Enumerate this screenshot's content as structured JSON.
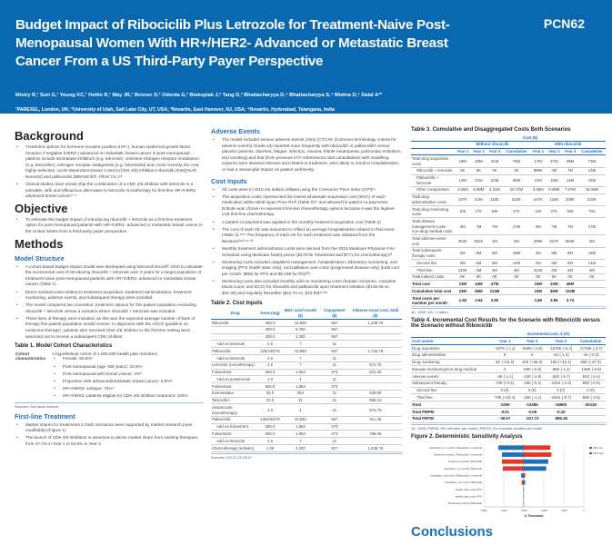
{
  "header": {
    "title": "Budget Impact of Ribociclib Plus Letrozole for Treatment-Naive Post-Menopausal Women With HR+/HER2- Advanced or Metastatic Breast Cancer From a US Third-Party Payer Perspective",
    "code": "PCN62",
    "authors": "Mistry R,¹ Suri G,¹ Young KC,¹ Hettle R,¹ May JR,¹ Brixner D,² Oderda G,² Biskupiak J,² Tang D,³ Bhattacharyya D,⁴ Bhattacharyya S,⁴ Mishra D,⁴ Dalal A³*",
    "affiliations": "¹PAREXEL, London, UK; ²University of Utah, Salt Lake City, UT, USA; ³Novartis, East Hanover, NJ, USA; ⁴Novartis, Hyderabad, Telangana, India",
    "corresponding": "*Corresponding author (anand.dalal@novartis.com)"
  },
  "background": {
    "heading": "Background",
    "bullets": [
      "Treatment options for hormone receptor-positive (HR+), human epidermal growth factor receptor 2-negative (HER2-) advanced or metastatic breast cancer in post-menopausal patients include aromatase inhibitors (e.g. letrozole), selective estrogen receptor modulators (e.g. tamoxifen), estrogen receptor antagonists (e.g. fulvestrant) and, most recently, the oral, highly-selective, cyclin-dependent kinase 4 and 6 (CDK 4/6) inhibitors ribociclib (KISQALI®, Novartis) and palbociclib (IBRANCE®, Pfizer Inc.)¹²",
      "Clinical studies have shown that the combination of a CDK 4/6 inhibitor with letrozole is a tolerable, safe and efficacious alternative to letrozole monotherapy for first-line HR+/HER2- advanced breast cancer³⁻⁵"
    ]
  },
  "objective": {
    "heading": "Objective",
    "bullets": [
      "To estimate the budget impact of introducing ribociclib + letrozole as a first-line treatment option for post-menopausal patients with HR+/HER2- advanced or metastatic breast cancer in the United States from a third-party payer perspective"
    ]
  },
  "methods": {
    "heading": "Methods",
    "model_heading": "Model Structure",
    "model_bullets": [
      "A cohort-based budget impact model was developed using Microsoft Excel® 2010 to calculate the incremental cost of introducing ribociclib + letrozole over 3 years for a target population of treatment-naive post-menopausal patients with HR+/HER2- advanced or metastatic breast cancer (Table 1)",
      "Direct medical costs related to treatment acquisition, treatment administration, treatment monitoring, adverse events, and subsequent therapy were included",
      "The model compared two scenarios: treatment options for this patient population excluding ribociclib + letrozole versus a scenario where ribociclib + letrozole was included",
      "Three lines of therapy were included, as this was the expected average number of lines of therapy this patient population would receive. In alignment with the ASCO guideline on endocrine therapy⁶, patients who received CDK 4/6 inhibitor in the first-line setting were assumed not to receive a subsequent CDK inhibitor"
    ],
    "table1": {
      "title": "Table 1. Model Cohort Characteristics",
      "label": "Cohort characteristics",
      "intro": "A hypothetical cohort of 1,000,000 health plan members",
      "items": [
        "Female: 50.8%⁷",
        "Post-menopausal (age >50 years): 33.9%⁷",
        "Post-menopausal with breast cancer: 3%⁸",
        "Proportion with advanced/metastatic breast cancer: 6.9%⁸",
        "HR+/HER2- subtype: 74%⁹",
        "HR+/HER2- patients eligible for CDK 4/6 inhibitor treatment: 100%"
      ],
      "source": "Sources: See table content."
    },
    "firstline_heading": "First-line Treatment",
    "firstline_bullets": [
      "Market shares for treatments in both scenarios were supported by market research (user modifiable) (Figure 1)",
      "The launch of CDK 4/6 inhibitors is assumed to derive market share from existing therapies, from 47.7% in Year 1 to 64.6% in Year 3"
    ]
  },
  "adverse": {
    "heading": "Adverse Events",
    "bullets": [
      "The model included serious adverse events (AEs) (CTCAE (Common terminology criteria for adverse events) Grade ≥3) reported more frequently with ribociclib³ or palbociclib³ versus placebo (anemia, diarrhea, fatigue, infection, nausea, febrile neutropenia, pulmonary embolism, and vomiting) and that (from previous HTA submissions and consultations with modelling experts) were deemed relevant and related to treatment, were likely to result in hospitalization, or had a meaningful impact on patient well-being"
    ]
  },
  "cost_inputs": {
    "heading": "Cost Inputs",
    "bullets": [
      "All costs were in 2016 US dollars inflated using the Consumer Price Index (CPI)¹⁴",
      "The acquisition costs represented the lowest wholesale acquisition cost (WAC) of each medication within Medi-Span Price Rx® (Table 2)¹⁵ and allowed for patient co-payments. Eribulin was chosen to represent first-line chemotherapy options because it was the highest cost first-line chemotherapy",
      "A patient co-payment was applied to the monthly treatment acquisition cost (Table 2)",
      "The cost of each AE was assumed to reflect an average hospitalization related to that event (Table 2).¹⁶¹⁷ The frequency of each AE for each treatment was obtained from the literature³⁵¹⁰¹⁸⁻²¹",
      "Monthly treatment administration costs were derived from the 2016 Medicare Physician Fee Schedule using Medicare facility prices ($179 for fulvestrant and $771 for chemotherapy)²²",
      "Monitoring costs included outpatient management, hospitalization, laboratory monitoring, and imaging (PFS health state only), and palliative care costs (progressed disease only) (total cost per month: $686 for PFS and $6,199 for PD)²²³",
      "Monitoring costs also included monthly add-on monitoring costs (hepatic enzymes, complete blood count, and ECG) for ribociclib and palbociclib upon treatment initiation ($138.48 vs. $42.36) and regularly thereafter ($21.72 vs. $10.59)⁵²⁴²⁵"
    ]
  },
  "table2": {
    "title": "Table 2. Cost Inputs",
    "headers": [
      "Drug",
      "Dose (mg)",
      "WAC cost/ month ($)",
      "Copayment ($)",
      "Adverse event cost, total ($)"
    ],
    "rows": [
      [
        "Ribociclib",
        "600.0",
        "10,950",
        "567",
        "1,348.79",
        0
      ],
      [
        "",
        "400.0",
        "8,760",
        "567",
        "",
        0
      ],
      [
        "",
        "200.0",
        "4,380",
        "567",
        "",
        0
      ],
      [
        "Add-on letrozole",
        "2.5",
        "7",
        "11",
        "",
        1
      ],
      [
        "Palbociclib",
        "125/100/75",
        "10,963",
        "567",
        "1,734.76",
        0
      ],
      [
        "Add-on letrozole",
        "2.5",
        "7",
        "11",
        "",
        1
      ],
      [
        "Letrozole (monotherapy)",
        "2.5",
        "7",
        "11",
        "572.75",
        0
      ],
      [
        "Fulvestrant",
        "500.0",
        "1,863",
        "373",
        "831.00",
        0
      ],
      [
        "Add-on anastrozole",
        "1.0",
        "4",
        "11",
        "",
        1
      ],
      [
        "Fulvestrant",
        "500.0",
        "1,863",
        "373",
        "",
        0
      ],
      [
        "Exemestane",
        "25.0",
        "304",
        "11",
        "639.90",
        0
      ],
      [
        "Tamoxifen",
        "20.0",
        "21",
        "11",
        "959.14",
        0
      ],
      [
        "Anastrozole (monotherapy)",
        "1.0",
        "4",
        "11",
        "572.75",
        0
      ],
      [
        "Palbociclib",
        "125/100/75",
        "10,963",
        "567",
        "911.40",
        0
      ],
      [
        "Add-on fulvestrant",
        "500.0",
        "1,863",
        "373",
        "",
        1
      ],
      [
        "Fulvestrant",
        "500.0",
        "1,863",
        "373",
        "789.36",
        0
      ],
      [
        "Add-on letrozole",
        "2.5",
        "7",
        "11",
        "",
        1
      ],
      [
        "Chemotherapy (eribulin)",
        "1.29",
        "4,200",
        "827",
        "1,026.78",
        0
      ]
    ],
    "source": "Sources: 3,5,11,13,15-20"
  },
  "table3": {
    "title": "Table 3. Cumulative and Disaggregated Costs Both Scenarios",
    "group": "Cost ($)",
    "without": "Without ribociclib",
    "with": "With ribociclib",
    "cols": [
      "Year 1",
      "Year 2",
      "Year 3",
      "Cumulative",
      "Year 1",
      "Year 2",
      "Year 3",
      "Cumulative"
    ],
    "rows": [
      [
        "Total drug acquisition costs",
        "18M",
        "28M",
        "31M",
        "76M",
        "17M",
        "27M",
        "29M",
        "73M",
        0
      ],
      [
        "Ribociclib + letrozole",
        "0K",
        "0K",
        "0K",
        "0K",
        "896K",
        "4M",
        "7M",
        "12M",
        1
      ],
      [
        "Palbociclib + letrozole",
        "13M",
        "21M",
        "22M",
        "56M",
        "12M",
        "16M",
        "14M",
        "42M",
        1
      ],
      [
        "Other comparators",
        "4.65M",
        "6.88M",
        "8.22M",
        "19.74M",
        "4.65M",
        "6.88M",
        "7.87M",
        "19.39M",
        1
      ],
      [
        "Total drug administration costs",
        "107K",
        "116K",
        "110K",
        "334K",
        "107K",
        "116K",
        "109K",
        "332K",
        0
      ],
      [
        "Total drug monitoring costs",
        "10K",
        "17K",
        "19K",
        "47K",
        "12K",
        "27K",
        "36K",
        "75K",
        0
      ],
      [
        "Total disease management costs/ non-drug medical costs",
        "3M",
        "7M",
        "7M",
        "17M",
        "3M",
        "7M",
        "7M",
        "17M",
        0
      ],
      [
        "Total adverse-event cost",
        "303K",
        "651K",
        "1M",
        "2M",
        "299K",
        "627K",
        "963K",
        "2M",
        0
      ],
      [
        "Total subsequent therapy costs",
        "2M",
        "8M",
        "8M",
        "18M",
        "2M",
        "8M",
        "8M",
        "18M",
        0
      ],
      [
        "Second line",
        "2M",
        "6M",
        "6M",
        "14M",
        "2M",
        "6M",
        "6M",
        "14M",
        1
      ],
      [
        "Third line",
        "240K",
        "2M",
        "2M",
        "4M",
        "313K",
        "2M",
        "2M",
        "4M",
        1
      ],
      [
        "Total indirect costs",
        "0K",
        "0K",
        "0K",
        "0K",
        "0K",
        "0K",
        "0K",
        "0K",
        0
      ],
      [
        "Total cost",
        "23M",
        "44M",
        "47M",
        "",
        "23M",
        "43M",
        "45M",
        "",
        2
      ],
      [
        "Cumulative total cost",
        "23M",
        "66M",
        "113M",
        "",
        "23M",
        "65M",
        "110M",
        "",
        2
      ],
      [
        "Total costs per member per month",
        "1.90",
        "3.64",
        "3.90",
        "",
        "1.89",
        "3.55",
        "3.74",
        "",
        2
      ]
    ],
    "note": "1K, 1000; 1M, 1 million"
  },
  "table4": {
    "title": "Table 4. Incremental Cost Results for the Scenario with Ribociclib versus the Scenario without Ribociclib",
    "group": "Incremental cost, $ (%)",
    "headers": [
      "Cost center",
      "Year 1",
      "Year 2",
      "Year 3",
      "Cumulative"
    ],
    "rows": [
      [
        "Drug acquisition",
        "-197K (-1.1)",
        "-940K (-3.5)",
        "-1575K (-5.4)",
        "-2719K (-3.7)",
        0
      ],
      [
        "Drug administration",
        "0",
        "0",
        "-1K (-1.0)",
        "-1K (-0.3)",
        0
      ],
      [
        "Drug monitoring",
        "2K (+16.4)",
        "10K (+36.3)",
        "16K (+45.4)",
        "28K (+37.3)",
        0
      ],
      [
        "Disease monitoring/non-drug medical",
        "0",
        "-60K (-0.9)",
        "-85K (-1.2)",
        "-145K (-0.9)",
        0
      ],
      [
        "Adverse events",
        "-3K (-1.1)",
        "-24K (-3.9)",
        "-54K (-5.7)",
        "-82K (-4.4)",
        0
      ],
      [
        "Subsequent therapy",
        "73K (+3.6)",
        "-19K (-0.2)",
        "-151K (-1.9)",
        "-96K (-0.5)",
        0
      ],
      [
        "Second line",
        "0 (0)",
        "0 (0)",
        "0 (0)",
        "0 (0)",
        1
      ],
      [
        "Third line",
        "73K (+23.4)",
        "-19K (-1.1)",
        "-151K (-8.7)",
        "-96K (-2.5)",
        1
      ],
      [
        "Total",
        "-125K",
        "-1036K",
        "-1850K",
        "-3012K",
        2
      ],
      [
        "Total PMPM",
        "-0.01",
        "-0.09",
        "-0.15",
        "",
        2
      ],
      [
        "Total PMTM",
        "-39.57",
        "-327.73",
        "-585.28",
        "",
        2
      ]
    ],
    "note": "1K, 1000; PMPM, Per member per month; PMTM, Per member treated per month"
  },
  "chart_data": {
    "type": "bar",
    "subtype": "tornado",
    "title": "Figure 2. Deterministic Sensitivity Analysis",
    "xlabel": "$, Thousands",
    "xlim": [
      -5000,
      0
    ],
    "xticks": [
      "-5000",
      "-4000",
      "-3000",
      "-2000",
      "-1000",
      "0"
    ],
    "base": -3012,
    "categories": [
      "Acquisition, 2+ months, Palbociclib + Letrozole",
      "Treatment duration, Palbociclib + Letrozole",
      "Treatment duration, Ribociclib",
      "Acquisition, 2+ months, Ribociclib",
      "Acquisition, 1st month, Palbociclib + Letrozole",
      "Acquisition, 1st month, Ribociclib",
      "Health state costs, PFS",
      "Health state costs, PFS",
      "Monitoring costs for Ribociclib"
    ],
    "series": [
      {
        "name": "20% low",
        "color": "#e0392b",
        "values": [
          -1670,
          -1620,
          -4100,
          -4050,
          -2930,
          -3110,
          -3000,
          -3020,
          -3015
        ]
      },
      {
        "name": "20% high",
        "color": "#1f6fc0",
        "values": [
          -4270,
          -4090,
          -1780,
          -1880,
          -3130,
          -2930,
          -3030,
          -3005,
          -3010
        ]
      }
    ]
  },
  "conclusions": {
    "heading": "Conclusions"
  },
  "colors": {
    "brand": "#0a68b0",
    "accent": "#1a6fbf"
  }
}
